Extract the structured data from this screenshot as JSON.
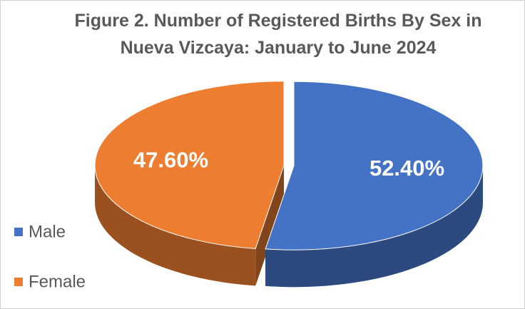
{
  "chart_data": {
    "type": "pie",
    "title": "Figure 2. Number of Registered Births By Sex in Nueva Vizcaya: January to June 2024",
    "categories": [
      "Male",
      "Female"
    ],
    "values": [
      52.4,
      47.6
    ],
    "value_labels": [
      "52.40%",
      "47.60%"
    ],
    "colors": [
      "#4472c4",
      "#ed7d31"
    ],
    "legend": "left"
  }
}
